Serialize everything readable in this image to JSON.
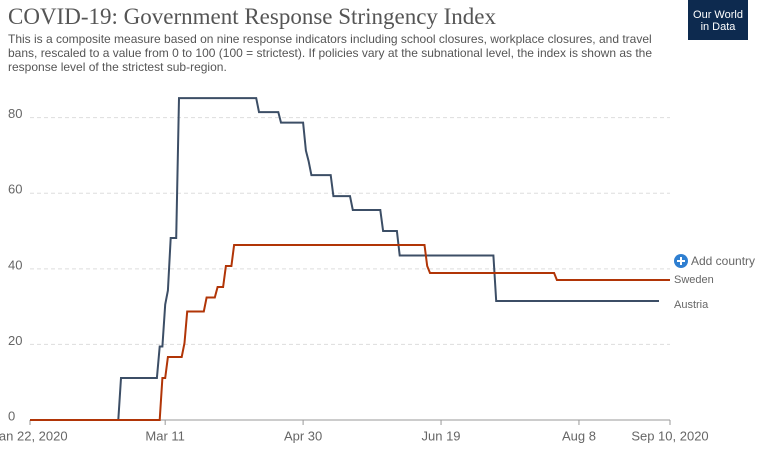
{
  "chart_data": {
    "type": "line",
    "title": "COVID-19: Government Response Stringency Index",
    "subtitle": "This is a composite measure based on nine response indicators including school closures, workplace closures, and travel bans, rescaled to a value from 0 to 100 (100 = strictest). If policies vary at the subnational level, the index is shown as the response level of the strictest sub-region.",
    "logo": "Our World in Data",
    "add_button": "Add country",
    "xlim": [
      "2020-01-22",
      "2020-09-10"
    ],
    "xticks": [
      {
        "value": "2020-01-22",
        "label": "Jan 22, 2020"
      },
      {
        "value": "2020-03-11",
        "label": "Mar 11"
      },
      {
        "value": "2020-04-30",
        "label": "Apr 30"
      },
      {
        "value": "2020-06-19",
        "label": "Jun 19"
      },
      {
        "value": "2020-08-08",
        "label": "Aug 8"
      },
      {
        "value": "2020-09-10",
        "label": "Sep 10, 2020"
      }
    ],
    "ylim": [
      0,
      86
    ],
    "yticks": [
      0,
      20,
      40,
      60,
      80
    ],
    "grid": true,
    "series": [
      {
        "name": "Austria",
        "color": "#3c4e66",
        "x": [
          "2020-01-22",
          "2020-02-23",
          "2020-02-24",
          "2020-03-08",
          "2020-03-09",
          "2020-03-10",
          "2020-03-11",
          "2020-03-12",
          "2020-03-13",
          "2020-03-15",
          "2020-03-16",
          "2020-04-13",
          "2020-04-14",
          "2020-04-21",
          "2020-04-22",
          "2020-04-30",
          "2020-05-01",
          "2020-05-02",
          "2020-05-03",
          "2020-05-10",
          "2020-05-11",
          "2020-05-17",
          "2020-05-18",
          "2020-05-28",
          "2020-05-29",
          "2020-06-03",
          "2020-06-04",
          "2020-07-08",
          "2020-07-09",
          "2020-09-06"
        ],
        "values": [
          0,
          0,
          11.11,
          11.11,
          19.44,
          19.44,
          30.56,
          34.26,
          48.15,
          48.15,
          85.19,
          85.19,
          81.48,
          81.48,
          78.7,
          78.7,
          71.3,
          68.52,
          64.81,
          64.81,
          59.26,
          59.26,
          55.56,
          55.56,
          50,
          50,
          43.52,
          43.52,
          31.48,
          31.48
        ]
      },
      {
        "name": "Sweden",
        "color": "#b13507",
        "x": [
          "2020-01-22",
          "2020-03-09",
          "2020-03-10",
          "2020-03-11",
          "2020-03-12",
          "2020-03-17",
          "2020-03-18",
          "2020-03-19",
          "2020-03-25",
          "2020-03-26",
          "2020-03-29",
          "2020-03-30",
          "2020-04-01",
          "2020-04-02",
          "2020-04-04",
          "2020-04-05",
          "2020-06-13",
          "2020-06-14",
          "2020-06-15",
          "2020-07-30",
          "2020-07-31",
          "2020-09-10"
        ],
        "values": [
          0,
          0,
          11.11,
          11.11,
          16.67,
          16.67,
          20.37,
          28.7,
          28.7,
          32.41,
          32.41,
          35.19,
          35.19,
          40.74,
          40.74,
          46.3,
          46.3,
          40.74,
          38.89,
          38.89,
          37.04,
          37.04
        ]
      }
    ]
  }
}
